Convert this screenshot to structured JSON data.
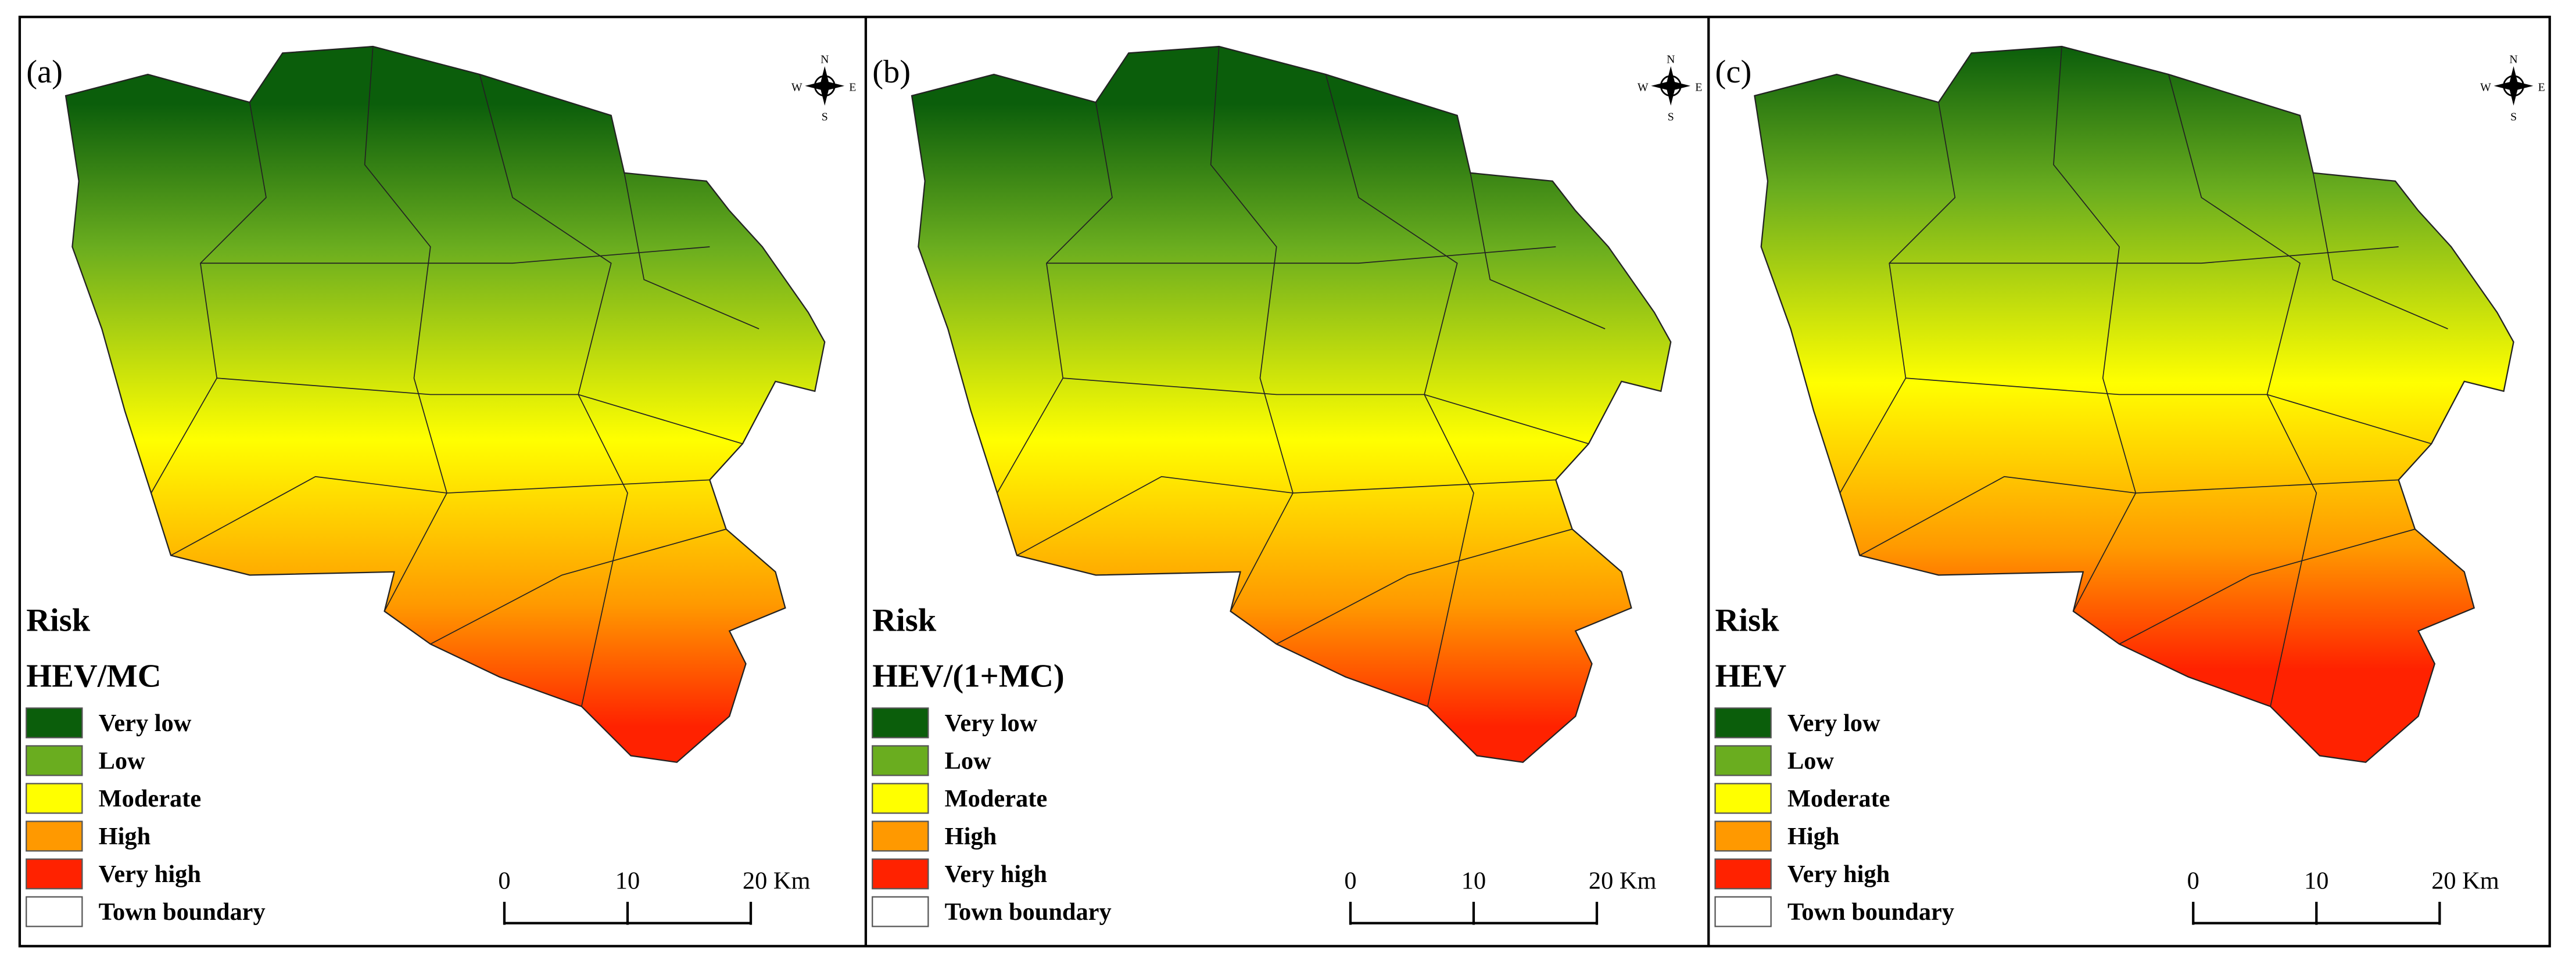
{
  "panels": [
    {
      "label": "(a)",
      "legend": {
        "title": "Risk",
        "subtitle": "HEV/MC",
        "items": [
          {
            "label": "Very low",
            "color": "#0b5e0b"
          },
          {
            "label": "Low",
            "color": "#6aad1f"
          },
          {
            "label": "Moderate",
            "color": "#ffff00"
          },
          {
            "label": "High",
            "color": "#ff9900"
          },
          {
            "label": "Very high",
            "color": "#ff2200"
          },
          {
            "label": "Town boundary",
            "color": "#ffffff"
          }
        ]
      },
      "scale_bar": {
        "labels": [
          "0",
          "10",
          "20 Km"
        ]
      },
      "compass": {
        "n": "N",
        "s": "S",
        "e": "E",
        "w": "W"
      }
    },
    {
      "label": "(b)",
      "legend": {
        "title": "Risk",
        "subtitle": "HEV/(1+MC)",
        "items": [
          {
            "label": "Very low",
            "color": "#0b5e0b"
          },
          {
            "label": "Low",
            "color": "#6aad1f"
          },
          {
            "label": "Moderate",
            "color": "#ffff00"
          },
          {
            "label": "High",
            "color": "#ff9900"
          },
          {
            "label": "Very high",
            "color": "#ff2200"
          },
          {
            "label": "Town boundary",
            "color": "#ffffff"
          }
        ]
      },
      "scale_bar": {
        "labels": [
          "0",
          "10",
          "20 Km"
        ]
      },
      "compass": {
        "n": "N",
        "s": "S",
        "e": "E",
        "w": "W"
      }
    },
    {
      "label": "(c)",
      "legend": {
        "title": "Risk",
        "subtitle": "HEV",
        "items": [
          {
            "label": "Very low",
            "color": "#0b5e0b"
          },
          {
            "label": "Low",
            "color": "#6aad1f"
          },
          {
            "label": "Moderate",
            "color": "#ffff00"
          },
          {
            "label": "High",
            "color": "#ff9900"
          },
          {
            "label": "Very high",
            "color": "#ff2200"
          },
          {
            "label": "Town boundary",
            "color": "#ffffff"
          }
        ]
      },
      "scale_bar": {
        "labels": [
          "0",
          "10",
          "20 Km"
        ]
      },
      "compass": {
        "n": "N",
        "s": "S",
        "e": "E",
        "w": "W"
      }
    }
  ]
}
